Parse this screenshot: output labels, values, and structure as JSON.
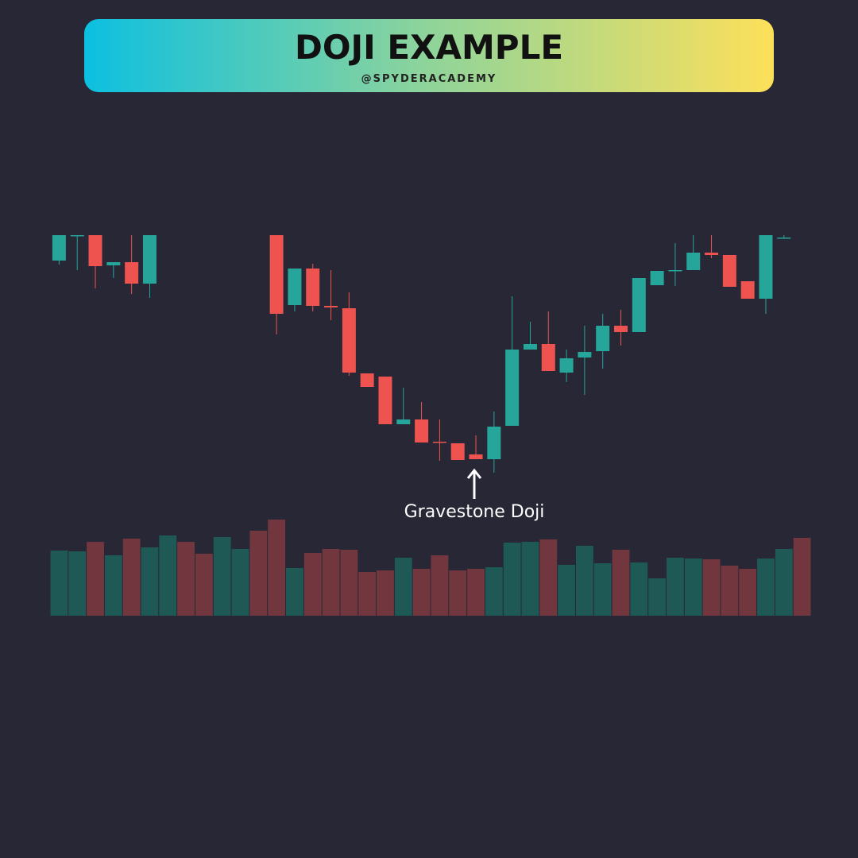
{
  "chart_data": {
    "type": "candlestick",
    "title": "DOJI EXAMPLE",
    "subtitle": "@SPYDERACADEMY",
    "annotation": "Gravestone Doji",
    "up_color": "#26a69a",
    "down_color": "#ef5350",
    "ylim": [
      0,
      310
    ],
    "open": [
      272,
      303,
      304,
      266,
      270,
      243,
      null,
      null,
      null,
      null,
      null,
      null,
      304,
      216,
      262,
      215,
      212,
      130,
      126,
      66,
      72,
      44,
      42,
      28,
      22,
      64,
      160,
      167,
      131,
      150,
      158,
      190,
      182,
      241,
      259,
      260,
      282,
      279,
      246,
      224,
      300,
      null
    ],
    "high": [
      304,
      304,
      304,
      270,
      304,
      304,
      null,
      null,
      null,
      null,
      null,
      null,
      304,
      262,
      268,
      260,
      232,
      130,
      126,
      112,
      94,
      72,
      42,
      52,
      82,
      227,
      195,
      208,
      160,
      190,
      205,
      210,
      250,
      259,
      294,
      304,
      304,
      279,
      246,
      304,
      304,
      null
    ],
    "low": [
      267,
      260,
      237,
      250,
      230,
      225,
      null,
      null,
      null,
      null,
      null,
      null,
      179,
      208,
      208,
      197,
      127,
      113,
      66,
      66,
      43,
      20,
      21,
      22,
      5,
      64,
      160,
      133,
      119,
      103,
      136,
      165,
      182,
      241,
      240,
      260,
      275,
      239,
      224,
      205,
      300,
      null
    ],
    "close": [
      304,
      304,
      265,
      270,
      243,
      304,
      null,
      null,
      null,
      null,
      null,
      null,
      205,
      262,
      215,
      213,
      131,
      113,
      66,
      72,
      43,
      43,
      21,
      22,
      63,
      160,
      167,
      133,
      149,
      157,
      190,
      182,
      250,
      259,
      260,
      282,
      279,
      239,
      224,
      304,
      301,
      null
    ],
    "volume": [
      82,
      81,
      93,
      76,
      97,
      86,
      101,
      93,
      78,
      99,
      84,
      107,
      121,
      60,
      79,
      84,
      83,
      55,
      57,
      73,
      59,
      76,
      57,
      59,
      61,
      92,
      93,
      96,
      64,
      88,
      66,
      83,
      67,
      47,
      73,
      72,
      71,
      63,
      59,
      72,
      84,
      98
    ],
    "volume_colors": [
      "#1f5f5a",
      "#1f5f5a",
      "#7b3a3f",
      "#1f5f5a",
      "#7b3a3f",
      "#1f5f5a",
      "#1f5f5a",
      "#7b3a3f",
      "#7b3a3f",
      "#1f5f5a",
      "#1f5f5a",
      "#7b3a3f",
      "#7b3a3f",
      "#1f5f5a",
      "#7b3a3f",
      "#7b3a3f",
      "#7b3a3f",
      "#7b3a3f",
      "#7b3a3f",
      "#1f5f5a",
      "#7b3a3f",
      "#7b3a3f",
      "#7b3a3f",
      "#7b3a3f",
      "#1f5f5a",
      "#1f5f5a",
      "#1f5f5a",
      "#7b3a3f",
      "#1f5f5a",
      "#1f5f5a",
      "#1f5f5a",
      "#7b3a3f",
      "#1f5f5a",
      "#1f5f5a",
      "#1f5f5a",
      "#1f5f5a",
      "#7b3a3f",
      "#7b3a3f",
      "#7b3a3f",
      "#1f5f5a",
      "#1f5f5a",
      "#7b3a3f"
    ],
    "volume_ylim": [
      0,
      121
    ]
  }
}
